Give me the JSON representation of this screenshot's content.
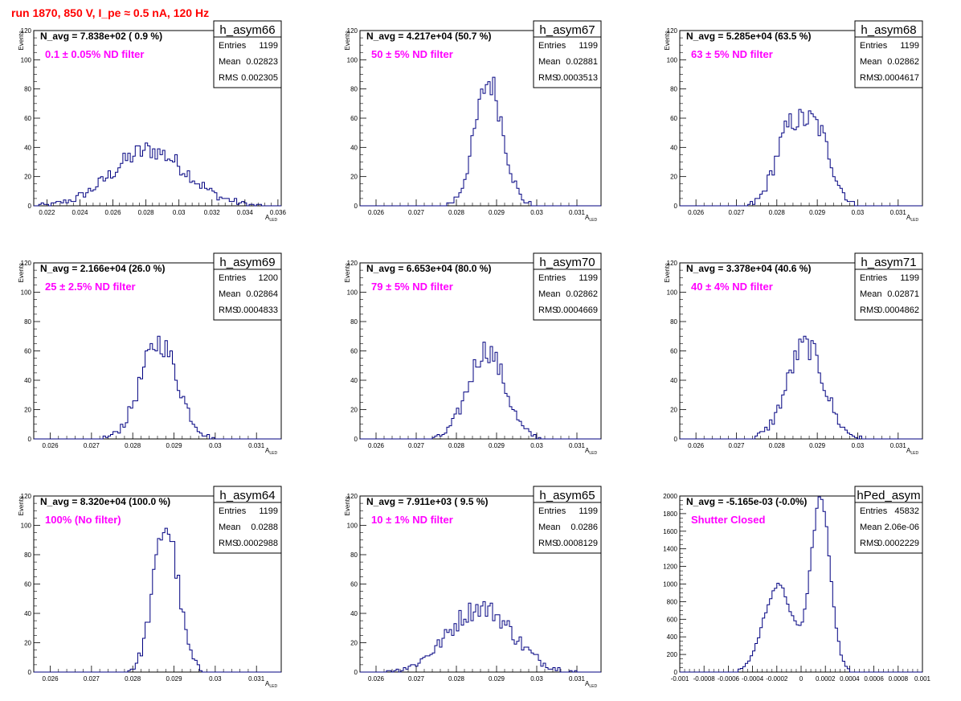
{
  "header": {
    "title": "run 1870,   850 V, I_pe ≈ 0.5 nA, 120 Hz"
  },
  "colors": {
    "histogram": "#000080",
    "annotation": "#ff00ff",
    "title": "#ff0000",
    "axis": "#000000"
  },
  "stats_labels": {
    "entries": "Entries",
    "mean": "Mean",
    "rms": "RMS"
  },
  "chart_data": [
    {
      "type": "histogram",
      "name": "h_asym66",
      "navg": "N_avg = 7.838e+02 ( 0.9 %)",
      "note": "0.1 ± 0.05% ND filter",
      "entries": "1199",
      "mean": "0.02823",
      "rms": "0.002305",
      "ylabel": "Events",
      "xlabel": "A_LED",
      "xlim": [
        0.0212,
        0.0362
      ],
      "ylim": [
        0,
        120
      ],
      "xticks": [
        0.022,
        0.024,
        0.026,
        0.028,
        0.03,
        0.032,
        0.034,
        0.036
      ],
      "xticklabels": [
        "0.022",
        "0.024",
        "0.026",
        "0.028",
        "0.03",
        "0.032",
        "0.034",
        "0.036"
      ],
      "yticks": [
        0,
        20,
        40,
        60,
        80,
        100,
        120
      ],
      "yticklabels": [
        "0",
        "20",
        "40",
        "60",
        "80",
        "100",
        "120"
      ],
      "shape": {
        "parts": [
          [
            1,
            0.02823,
            0.00225
          ]
        ],
        "peak": 38
      }
    },
    {
      "type": "histogram",
      "name": "h_asym67",
      "navg": "N_avg = 4.217e+04 (50.7 %)",
      "note": "50 ± 5% ND filter",
      "entries": "1199",
      "mean": "0.02881",
      "rms": "0.0003513",
      "ylabel": "Events",
      "xlabel": "A_LED",
      "xlim": [
        0.0256,
        0.0316
      ],
      "ylim": [
        0,
        120
      ],
      "xticks": [
        0.026,
        0.027,
        0.028,
        0.029,
        0.03,
        0.031
      ],
      "xticklabels": [
        "0.026",
        "0.027",
        "0.028",
        "0.029",
        "0.03",
        "0.031"
      ],
      "yticks": [
        0,
        20,
        40,
        60,
        80,
        100,
        120
      ],
      "yticklabels": [
        "0",
        "20",
        "40",
        "60",
        "80",
        "100",
        "120"
      ],
      "shape": {
        "parts": [
          [
            1,
            0.02881,
            0.00035
          ]
        ],
        "peak": 85
      }
    },
    {
      "type": "histogram",
      "name": "h_asym68",
      "navg": "N_avg = 5.285e+04 (63.5 %)",
      "note": "63 ± 5% ND filter",
      "entries": "1199",
      "mean": "0.02862",
      "rms": "0.0004617",
      "ylabel": "Events",
      "xlabel": "A_LED",
      "xlim": [
        0.0256,
        0.0316
      ],
      "ylim": [
        0,
        120
      ],
      "xticks": [
        0.026,
        0.027,
        0.028,
        0.029,
        0.03,
        0.031
      ],
      "xticklabels": [
        "0.026",
        "0.027",
        "0.028",
        "0.029",
        "0.03",
        "0.031"
      ],
      "yticks": [
        0,
        20,
        40,
        60,
        80,
        100,
        120
      ],
      "yticklabels": [
        "0",
        "20",
        "40",
        "60",
        "80",
        "100",
        "120"
      ],
      "shape": {
        "parts": [
          [
            1,
            0.0283,
            0.00035
          ],
          [
            1,
            0.029,
            0.00035
          ]
        ],
        "peak": 59
      }
    },
    {
      "type": "histogram",
      "name": "h_asym69",
      "navg": "N_avg = 2.166e+04 (26.0 %)",
      "note": "25 ± 2.5% ND filter",
      "entries": "1200",
      "mean": "0.02864",
      "rms": "0.0004833",
      "ylabel": "Events",
      "xlabel": "A_LED",
      "xlim": [
        0.0256,
        0.0316
      ],
      "ylim": [
        0,
        120
      ],
      "xticks": [
        0.026,
        0.027,
        0.028,
        0.029,
        0.03,
        0.031
      ],
      "xticklabels": [
        "0.026",
        "0.027",
        "0.028",
        "0.029",
        "0.03",
        "0.031"
      ],
      "yticks": [
        0,
        20,
        40,
        60,
        80,
        100,
        120
      ],
      "yticklabels": [
        "0",
        "20",
        "40",
        "60",
        "80",
        "100",
        "120"
      ],
      "shape": {
        "parts": [
          [
            1,
            0.02864,
            0.00045
          ]
        ],
        "peak": 66
      }
    },
    {
      "type": "histogram",
      "name": "h_asym70",
      "navg": "N_avg = 6.653e+04 (80.0 %)",
      "note": "79 ± 5% ND filter",
      "entries": "1199",
      "mean": "0.02862",
      "rms": "0.0004669",
      "ylabel": "Events",
      "xlabel": "A_LED",
      "xlim": [
        0.0256,
        0.0316
      ],
      "ylim": [
        0,
        120
      ],
      "xticks": [
        0.026,
        0.027,
        0.028,
        0.029,
        0.03,
        0.031
      ],
      "xticklabels": [
        "0.026",
        "0.027",
        "0.028",
        "0.029",
        "0.03",
        "0.031"
      ],
      "yticks": [
        0,
        20,
        40,
        60,
        80,
        100,
        120
      ],
      "yticklabels": [
        "0",
        "20",
        "40",
        "60",
        "80",
        "100",
        "120"
      ],
      "shape": {
        "parts": [
          [
            1,
            0.02875,
            0.00045
          ]
        ],
        "peak": 61
      }
    },
    {
      "type": "histogram",
      "name": "h_asym71",
      "navg": "N_avg = 3.378e+04 (40.6 %)",
      "note": "40 ± 4% ND filter",
      "entries": "1199",
      "mean": "0.02871",
      "rms": "0.0004862",
      "ylabel": "Events",
      "xlabel": "A_LED",
      "xlim": [
        0.0256,
        0.0316
      ],
      "ylim": [
        0,
        120
      ],
      "xticks": [
        0.026,
        0.027,
        0.028,
        0.029,
        0.03,
        0.031
      ],
      "xticklabels": [
        "0.026",
        "0.027",
        "0.028",
        "0.029",
        "0.03",
        "0.031"
      ],
      "yticks": [
        0,
        20,
        40,
        60,
        80,
        100,
        120
      ],
      "yticklabels": [
        "0",
        "20",
        "40",
        "60",
        "80",
        "100",
        "120"
      ],
      "shape": {
        "parts": [
          [
            1,
            0.02871,
            0.00045
          ]
        ],
        "peak": 64
      }
    },
    {
      "type": "histogram",
      "name": "h_asym64",
      "navg": "N_avg = 8.320e+04 (100.0 %)",
      "note": "100% (No filter)",
      "entries": "1199",
      "mean": "0.0288",
      "rms": "0.0002988",
      "ylabel": "Events",
      "xlabel": "A_LED",
      "xlim": [
        0.0256,
        0.0316
      ],
      "ylim": [
        0,
        120
      ],
      "xticks": [
        0.026,
        0.027,
        0.028,
        0.029,
        0.03,
        0.031
      ],
      "xticklabels": [
        "0.026",
        "0.027",
        "0.028",
        "0.029",
        "0.03",
        "0.031"
      ],
      "yticks": [
        0,
        20,
        40,
        60,
        80,
        100,
        120
      ],
      "yticklabels": [
        "0",
        "20",
        "40",
        "60",
        "80",
        "100",
        "120"
      ],
      "shape": {
        "parts": [
          [
            1,
            0.0288,
            0.0003
          ]
        ],
        "peak": 100
      }
    },
    {
      "type": "histogram",
      "name": "h_asym65",
      "navg": "N_avg = 7.911e+03 ( 9.5 %)",
      "note": "10 ± 1% ND filter",
      "entries": "1199",
      "mean": "0.0286",
      "rms": "0.0008129",
      "ylabel": "Events",
      "xlabel": "A_LED",
      "xlim": [
        0.0256,
        0.0316
      ],
      "ylim": [
        0,
        120
      ],
      "xticks": [
        0.026,
        0.027,
        0.028,
        0.029,
        0.03,
        0.031
      ],
      "xticklabels": [
        "0.026",
        "0.027",
        "0.028",
        "0.029",
        "0.03",
        "0.031"
      ],
      "yticks": [
        0,
        20,
        40,
        60,
        80,
        100,
        120
      ],
      "yticklabels": [
        "0",
        "20",
        "40",
        "60",
        "80",
        "100",
        "120"
      ],
      "shape": {
        "parts": [
          [
            1,
            0.0286,
            0.0008
          ]
        ],
        "peak": 44
      }
    },
    {
      "type": "histogram",
      "name": "hPed_asym",
      "navg": "N_avg = -5.165e-03 (-0.0%)",
      "note": "Shutter Closed",
      "entries": "45832",
      "mean": "2.06e-06",
      "rms": "0.0002229",
      "ylabel": "",
      "xlabel": "",
      "xlim": [
        -0.001,
        0.001
      ],
      "ylim": [
        0,
        2000
      ],
      "xticks": [
        -0.001,
        -0.0008,
        -0.0006,
        -0.0004,
        -0.0002,
        0,
        0.0002,
        0.0004,
        0.0006,
        0.0008,
        0.001
      ],
      "xticklabels": [
        "-0.001",
        "-0.0008",
        "-0.0006",
        "-0.0004",
        "-0.0002",
        "0",
        "0.0002",
        "0.0004",
        "0.0006",
        "0.0008",
        "0.001"
      ],
      "yticks": [
        0,
        200,
        400,
        600,
        800,
        1000,
        1200,
        1400,
        1600,
        1800,
        2000
      ],
      "yticklabels": [
        "0",
        "200",
        "400",
        "600",
        "800",
        "1000",
        "1200",
        "1400",
        "1600",
        "1800",
        "2000"
      ],
      "shape": {
        "parts": [
          [
            0.5,
            -0.00019,
            0.00012
          ],
          [
            1,
            0.00016,
            8e-05
          ]
        ],
        "peak": 1960
      }
    }
  ]
}
